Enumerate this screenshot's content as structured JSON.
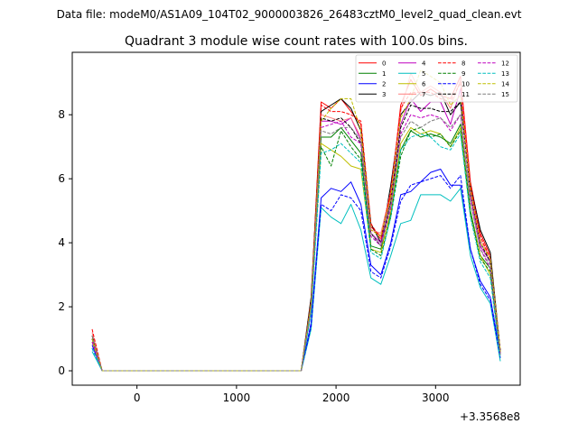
{
  "suptitle": "Data file: modeM0/AS1A09_104T02_9000003826_26483cztM0_level2_quad_clean.evt",
  "chart_data": {
    "type": "line",
    "title": "Quadrant 3 module wise count rates with 100.0s bins.",
    "xlabel": "",
    "ylabel": "",
    "x_offset_label": "+3.3568e8",
    "xlim": [
      -650,
      3850
    ],
    "ylim": [
      -0.45,
      9.95
    ],
    "xticks": [
      0,
      1000,
      2000,
      3000
    ],
    "yticks": [
      0,
      2,
      4,
      6,
      8
    ],
    "grid": false,
    "legend": {
      "position": "top-right",
      "columns": 4
    },
    "x": [
      -450,
      -350,
      -250,
      -150,
      -50,
      50,
      150,
      250,
      350,
      450,
      550,
      650,
      750,
      850,
      950,
      1050,
      1150,
      1250,
      1350,
      1450,
      1550,
      1650,
      1750,
      1850,
      1950,
      2050,
      2150,
      2250,
      2350,
      2450,
      2550,
      2650,
      2750,
      2850,
      2950,
      3050,
      3150,
      3250,
      3350,
      3450,
      3550,
      3650
    ],
    "series": [
      {
        "name": "0",
        "color": "#ff0000",
        "dash": "solid",
        "values": [
          1.1,
          0,
          0,
          0,
          0,
          0,
          0,
          0,
          0,
          0,
          0,
          0,
          0,
          0,
          0,
          0,
          0,
          0,
          0,
          0,
          0,
          0,
          2.2,
          8.4,
          8.2,
          8.5,
          8.1,
          7.7,
          4.5,
          4.2,
          5.5,
          8.3,
          9.1,
          8.6,
          8.8,
          8.6,
          8.5,
          9.2,
          5.9,
          4.3,
          3.6,
          0.6
        ]
      },
      {
        "name": "1",
        "color": "#008000",
        "dash": "solid",
        "values": [
          1.0,
          0,
          0,
          0,
          0,
          0,
          0,
          0,
          0,
          0,
          0,
          0,
          0,
          0,
          0,
          0,
          0,
          0,
          0,
          0,
          0,
          0,
          1.9,
          7.3,
          7.3,
          7.6,
          7.2,
          6.8,
          3.9,
          3.8,
          4.9,
          6.9,
          7.5,
          7.3,
          7.4,
          7.3,
          7.1,
          7.7,
          5.0,
          3.6,
          3.2,
          0.5
        ]
      },
      {
        "name": "2",
        "color": "#0000ff",
        "dash": "solid",
        "values": [
          0.8,
          0,
          0,
          0,
          0,
          0,
          0,
          0,
          0,
          0,
          0,
          0,
          0,
          0,
          0,
          0,
          0,
          0,
          0,
          0,
          0,
          0,
          1.5,
          5.4,
          5.7,
          5.6,
          5.9,
          5.2,
          3.3,
          3.0,
          4.0,
          5.5,
          5.6,
          5.9,
          6.2,
          6.3,
          5.8,
          5.8,
          3.8,
          2.8,
          2.3,
          0.5
        ]
      },
      {
        "name": "3",
        "color": "#000000",
        "dash": "solid",
        "values": [
          1.1,
          0,
          0,
          0,
          0,
          0,
          0,
          0,
          0,
          0,
          0,
          0,
          0,
          0,
          0,
          0,
          0,
          0,
          0,
          0,
          0,
          0,
          2.3,
          8.1,
          8.3,
          8.5,
          8.2,
          7.5,
          4.6,
          4.0,
          5.8,
          8.0,
          8.4,
          8.7,
          8.6,
          8.7,
          8.0,
          8.4,
          5.8,
          4.4,
          3.7,
          0.6
        ]
      },
      {
        "name": "4",
        "color": "#bf00bf",
        "dash": "solid",
        "values": [
          1.0,
          0,
          0,
          0,
          0,
          0,
          0,
          0,
          0,
          0,
          0,
          0,
          0,
          0,
          0,
          0,
          0,
          0,
          0,
          0,
          0,
          0,
          2.0,
          7.8,
          7.8,
          7.7,
          7.9,
          7.2,
          4.3,
          4.0,
          5.3,
          7.7,
          8.5,
          8.1,
          8.4,
          8.4,
          7.7,
          8.8,
          5.5,
          3.9,
          3.4,
          0.5
        ]
      },
      {
        "name": "5",
        "color": "#00bfbf",
        "dash": "solid",
        "values": [
          0.6,
          0,
          0,
          0,
          0,
          0,
          0,
          0,
          0,
          0,
          0,
          0,
          0,
          0,
          0,
          0,
          0,
          0,
          0,
          0,
          0,
          0,
          1.3,
          5.1,
          4.8,
          4.6,
          5.2,
          4.4,
          2.9,
          2.7,
          3.6,
          4.6,
          4.7,
          5.5,
          5.5,
          5.5,
          5.3,
          5.7,
          3.6,
          2.6,
          2.1,
          0.3
        ]
      },
      {
        "name": "6",
        "color": "#bfbf00",
        "dash": "solid",
        "values": [
          0.9,
          0,
          0,
          0,
          0,
          0,
          0,
          0,
          0,
          0,
          0,
          0,
          0,
          0,
          0,
          0,
          0,
          0,
          0,
          0,
          0,
          0,
          1.9,
          7.1,
          6.9,
          6.7,
          6.4,
          6.3,
          3.8,
          3.7,
          5.0,
          7.1,
          7.6,
          7.4,
          7.5,
          7.4,
          7.0,
          7.6,
          4.9,
          3.6,
          3.0,
          0.5
        ]
      },
      {
        "name": "7",
        "color": "#ff7f7f",
        "dash": "solid",
        "values": [
          1.2,
          0,
          0,
          0,
          0,
          0,
          0,
          0,
          0,
          0,
          0,
          0,
          0,
          0,
          0,
          0,
          0,
          0,
          0,
          0,
          0,
          0,
          2.1,
          8.0,
          7.9,
          7.8,
          7.9,
          7.3,
          4.4,
          4.3,
          5.6,
          8.1,
          9.3,
          8.7,
          8.9,
          8.7,
          8.2,
          9.1,
          5.7,
          4.1,
          3.5,
          0.6
        ]
      },
      {
        "name": "8",
        "color": "#ff0000",
        "dash": "dashed",
        "values": [
          1.3,
          0,
          0,
          0,
          0,
          0,
          0,
          0,
          0,
          0,
          0,
          0,
          0,
          0,
          0,
          0,
          0,
          0,
          0,
          0,
          0,
          0,
          2.2,
          8.3,
          8.1,
          8.1,
          8.0,
          7.8,
          4.6,
          4.1,
          5.6,
          8.2,
          8.7,
          8.7,
          8.7,
          8.5,
          8.4,
          9.0,
          5.8,
          4.2,
          3.5,
          0.6
        ]
      },
      {
        "name": "9",
        "color": "#008000",
        "dash": "dashed",
        "values": [
          1.0,
          0,
          0,
          0,
          0,
          0,
          0,
          0,
          0,
          0,
          0,
          0,
          0,
          0,
          0,
          0,
          0,
          0,
          0,
          0,
          0,
          0,
          1.9,
          7.0,
          6.4,
          7.5,
          7.0,
          6.6,
          3.8,
          3.6,
          4.8,
          6.7,
          7.5,
          7.6,
          7.3,
          7.4,
          7.0,
          7.5,
          4.9,
          3.5,
          3.1,
          0.5
        ]
      },
      {
        "name": "10",
        "color": "#0000ff",
        "dash": "dashed",
        "values": [
          0.7,
          0,
          0,
          0,
          0,
          0,
          0,
          0,
          0,
          0,
          0,
          0,
          0,
          0,
          0,
          0,
          0,
          0,
          0,
          0,
          0,
          0,
          1.4,
          5.2,
          5.0,
          5.5,
          5.4,
          5.0,
          3.1,
          2.9,
          3.9,
          5.3,
          5.8,
          5.9,
          6.0,
          6.1,
          5.7,
          6.1,
          3.8,
          2.7,
          2.2,
          0.4
        ]
      },
      {
        "name": "11",
        "color": "#000000",
        "dash": "dashed",
        "values": [
          1.0,
          0,
          0,
          0,
          0,
          0,
          0,
          0,
          0,
          0,
          0,
          0,
          0,
          0,
          0,
          0,
          0,
          0,
          0,
          0,
          0,
          0,
          2.1,
          7.9,
          7.8,
          7.9,
          7.6,
          7.1,
          4.3,
          3.9,
          5.3,
          7.6,
          8.3,
          8.2,
          8.2,
          8.1,
          8.1,
          8.4,
          5.6,
          4.0,
          3.4,
          0.6
        ]
      },
      {
        "name": "12",
        "color": "#bf00bf",
        "dash": "dashed",
        "values": [
          0.9,
          0,
          0,
          0,
          0,
          0,
          0,
          0,
          0,
          0,
          0,
          0,
          0,
          0,
          0,
          0,
          0,
          0,
          0,
          0,
          0,
          0,
          2.0,
          7.6,
          7.7,
          7.8,
          7.3,
          7.1,
          4.2,
          3.9,
          5.1,
          7.4,
          8.0,
          7.9,
          8.0,
          7.9,
          7.5,
          8.0,
          5.3,
          3.8,
          3.2,
          0.5
        ]
      },
      {
        "name": "13",
        "color": "#00bfbf",
        "dash": "dashed",
        "values": [
          0.7,
          0,
          0,
          0,
          0,
          0,
          0,
          0,
          0,
          0,
          0,
          0,
          0,
          0,
          0,
          0,
          0,
          0,
          0,
          0,
          0,
          0,
          1.8,
          6.8,
          6.9,
          7.1,
          6.8,
          6.5,
          3.7,
          3.5,
          4.8,
          6.9,
          7.3,
          7.4,
          7.3,
          7.0,
          6.9,
          7.4,
          4.8,
          3.4,
          2.9,
          0.4
        ]
      },
      {
        "name": "14",
        "color": "#bfbf00",
        "dash": "dashed",
        "values": [
          1.0,
          0,
          0,
          0,
          0,
          0,
          0,
          0,
          0,
          0,
          0,
          0,
          0,
          0,
          0,
          0,
          0,
          0,
          0,
          0,
          0,
          0,
          2.1,
          7.8,
          8.2,
          8.5,
          8.5,
          7.5,
          4.4,
          4.2,
          5.4,
          7.9,
          8.5,
          9.4,
          9.2,
          9.0,
          8.3,
          8.6,
          5.6,
          4.0,
          3.5,
          0.6
        ]
      },
      {
        "name": "15",
        "color": "#7f7f7f",
        "dash": "dashed",
        "values": [
          1.1,
          0,
          0,
          0,
          0,
          0,
          0,
          0,
          0,
          0,
          0,
          0,
          0,
          0,
          0,
          0,
          0,
          0,
          0,
          0,
          0,
          0,
          2.0,
          7.5,
          7.4,
          7.6,
          7.6,
          7.2,
          4.3,
          3.9,
          5.2,
          7.3,
          7.8,
          7.6,
          7.8,
          7.9,
          7.6,
          8.0,
          5.3,
          3.8,
          3.3,
          0.5
        ]
      }
    ]
  }
}
